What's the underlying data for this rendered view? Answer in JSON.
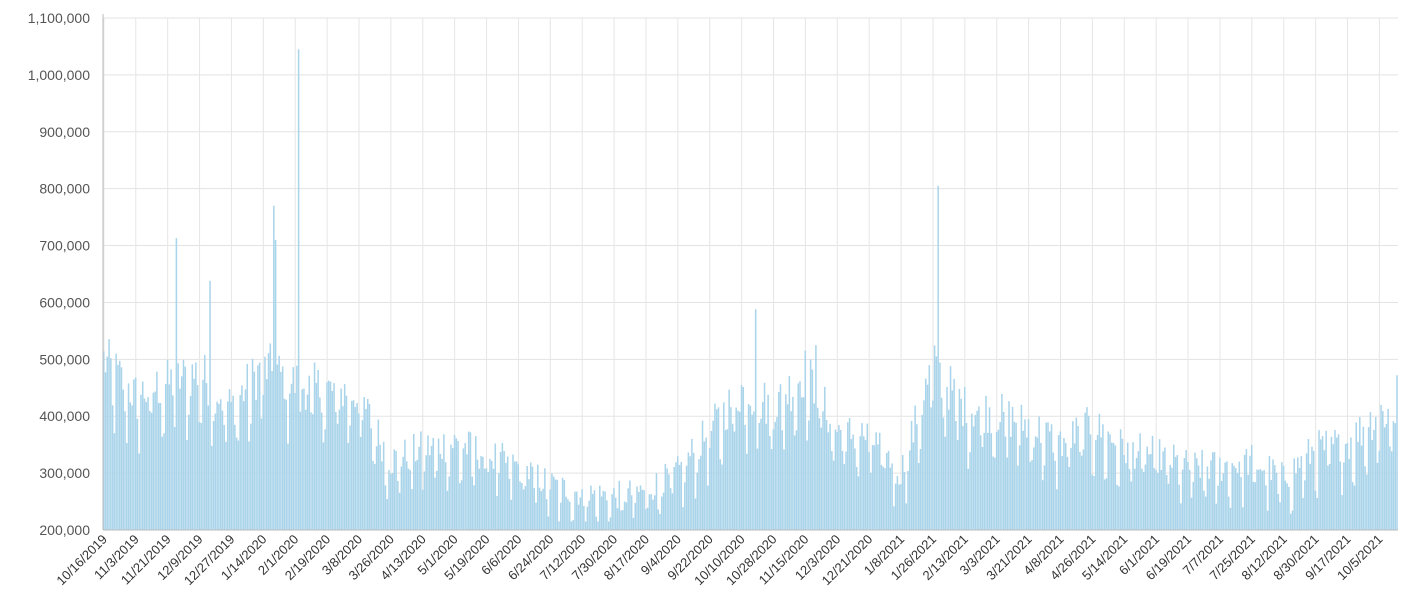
{
  "chart_data": {
    "type": "bar",
    "title": "",
    "xlabel": "",
    "ylabel": "",
    "ylim": [
      200000,
      1100000
    ],
    "y_ticks": [
      "200,000",
      "300,000",
      "400,000",
      "500,000",
      "600,000",
      "700,000",
      "800,000",
      "900,000",
      "1,000,000",
      "1,100,000"
    ],
    "x_ticks": [
      "10/16/2019",
      "11/3/2019",
      "11/21/2019",
      "12/9/2019",
      "12/27/2019",
      "1/14/2020",
      "2/1/2020",
      "2/19/2020",
      "3/8/2020",
      "3/26/2020",
      "4/13/2020",
      "5/1/2020",
      "5/19/2020",
      "6/6/2020",
      "6/24/2020",
      "7/12/2020",
      "7/30/2020",
      "8/17/2020",
      "9/4/2020",
      "9/22/2020",
      "10/10/2020",
      "10/28/2020",
      "11/15/2020",
      "12/3/2020",
      "12/21/2020",
      "1/8/2021",
      "1/26/2021",
      "2/13/2021",
      "3/3/2021",
      "3/21/2021",
      "4/8/2021",
      "4/26/2021",
      "5/14/2021",
      "6/1/2021",
      "6/19/2021",
      "7/7/2021",
      "7/25/2021",
      "8/12/2021",
      "8/30/2021",
      "9/17/2021",
      "10/5/2021"
    ],
    "grid": true,
    "legend": "none",
    "bar_color": "#a9d4ea",
    "sampled_values": [
      480000,
      420000,
      440000,
      460000,
      400000,
      470000,
      440000,
      430000,
      420000,
      310000,
      330000,
      340000,
      320000,
      300000,
      270000,
      255000,
      250000,
      260000,
      290000,
      360000,
      430000,
      400000,
      460000,
      360000,
      350000,
      290000,
      470000,
      400000,
      390000,
      370000,
      340000,
      370000,
      330000,
      320000,
      300000,
      300000,
      310000,
      280000,
      330000,
      340000,
      390000
    ],
    "spikes": [
      {
        "date": "11/26/2019",
        "value": 713000
      },
      {
        "date": "12/15/2019",
        "value": 638000
      },
      {
        "date": "1/20/2020",
        "value": 770000
      },
      {
        "date": "1/21/2020",
        "value": 710000
      },
      {
        "date": "2/3/2020",
        "value": 1045000
      },
      {
        "date": "10/18/2020",
        "value": 588000
      },
      {
        "date": "11/21/2020",
        "value": 525000
      },
      {
        "date": "1/29/2021",
        "value": 805000
      },
      {
        "date": "10/15/2021",
        "value": 472000
      }
    ]
  }
}
